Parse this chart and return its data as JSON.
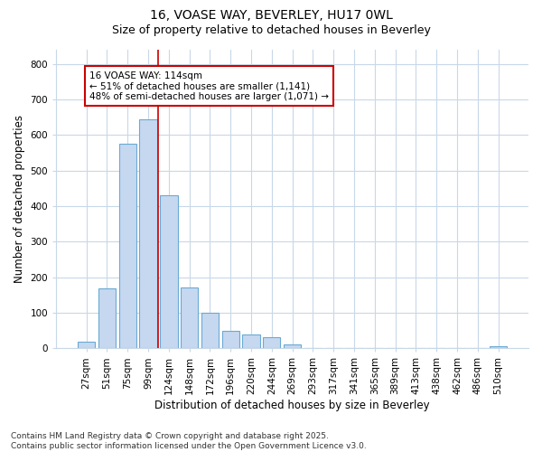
{
  "title": "16, VOASE WAY, BEVERLEY, HU17 0WL",
  "subtitle": "Size of property relative to detached houses in Beverley",
  "xlabel": "Distribution of detached houses by size in Beverley",
  "ylabel": "Number of detached properties",
  "categories": [
    "27sqm",
    "51sqm",
    "75sqm",
    "99sqm",
    "124sqm",
    "148sqm",
    "172sqm",
    "196sqm",
    "220sqm",
    "244sqm",
    "269sqm",
    "293sqm",
    "317sqm",
    "341sqm",
    "365sqm",
    "389sqm",
    "413sqm",
    "438sqm",
    "462sqm",
    "486sqm",
    "510sqm"
  ],
  "values": [
    18,
    168,
    575,
    643,
    430,
    170,
    100,
    50,
    40,
    32,
    12,
    0,
    0,
    0,
    0,
    0,
    0,
    0,
    0,
    0,
    5
  ],
  "bar_color": "#c5d8f0",
  "bar_edge_color": "#6aaad4",
  "vline_color": "#cc0000",
  "vline_x_pos": 3.5,
  "annotation_text": "16 VOASE WAY: 114sqm\n← 51% of detached houses are smaller (1,141)\n48% of semi-detached houses are larger (1,071) →",
  "annotation_box_color": "white",
  "annotation_box_edge_color": "#cc0000",
  "background_color": "#ffffff",
  "plot_bg_color": "#ffffff",
  "grid_color": "#c8d8e8",
  "ylim": [
    0,
    840
  ],
  "yticks": [
    0,
    100,
    200,
    300,
    400,
    500,
    600,
    700,
    800
  ],
  "footnote": "Contains HM Land Registry data © Crown copyright and database right 2025.\nContains public sector information licensed under the Open Government Licence v3.0.",
  "title_fontsize": 10,
  "subtitle_fontsize": 9,
  "axis_label_fontsize": 8.5,
  "tick_fontsize": 7.5,
  "annotation_fontsize": 7.5,
  "footnote_fontsize": 6.5
}
